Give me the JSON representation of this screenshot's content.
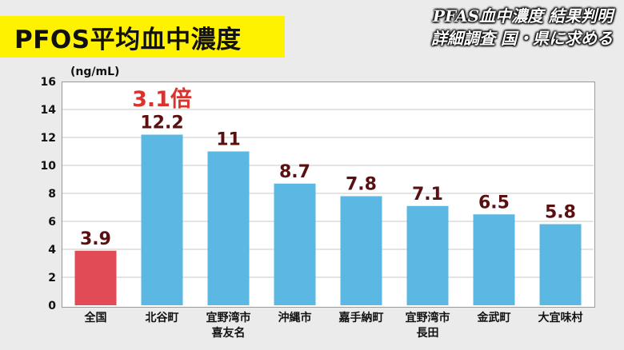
{
  "title": "PFOS平均血中濃度",
  "headline": {
    "line1": "PFAS血中濃度 結果判明",
    "line2": "詳細調査 国・県に求める"
  },
  "unit_label": "(ng/mL)",
  "annotation": "3.1倍",
  "colors": {
    "highlight_bar": "#e04b55",
    "normal_bar": "#5bb8e3",
    "value_label": "#5a1010",
    "annotation": "#d9332d",
    "banner": "#fff200"
  },
  "chart_data": {
    "type": "bar",
    "title": "PFOS平均血中濃度",
    "ylabel": "(ng/mL)",
    "categories": [
      "全国",
      "北谷町",
      "宜野湾市\n喜友名",
      "沖縄市",
      "嘉手納町",
      "宜野湾市\n長田",
      "金武町",
      "大宜味村"
    ],
    "values": [
      3.9,
      12.2,
      11,
      8.7,
      7.8,
      7.1,
      6.5,
      5.8
    ],
    "value_labels": [
      "3.9",
      "12.2",
      "11",
      "8.7",
      "7.8",
      "7.1",
      "6.5",
      "5.8"
    ],
    "highlight_index": 0,
    "annotation": {
      "text": "3.1倍",
      "category_index": 1
    },
    "ylim": [
      0,
      16
    ],
    "yticks": [
      0,
      2,
      4,
      6,
      8,
      10,
      12,
      14,
      16
    ],
    "grid": true
  }
}
